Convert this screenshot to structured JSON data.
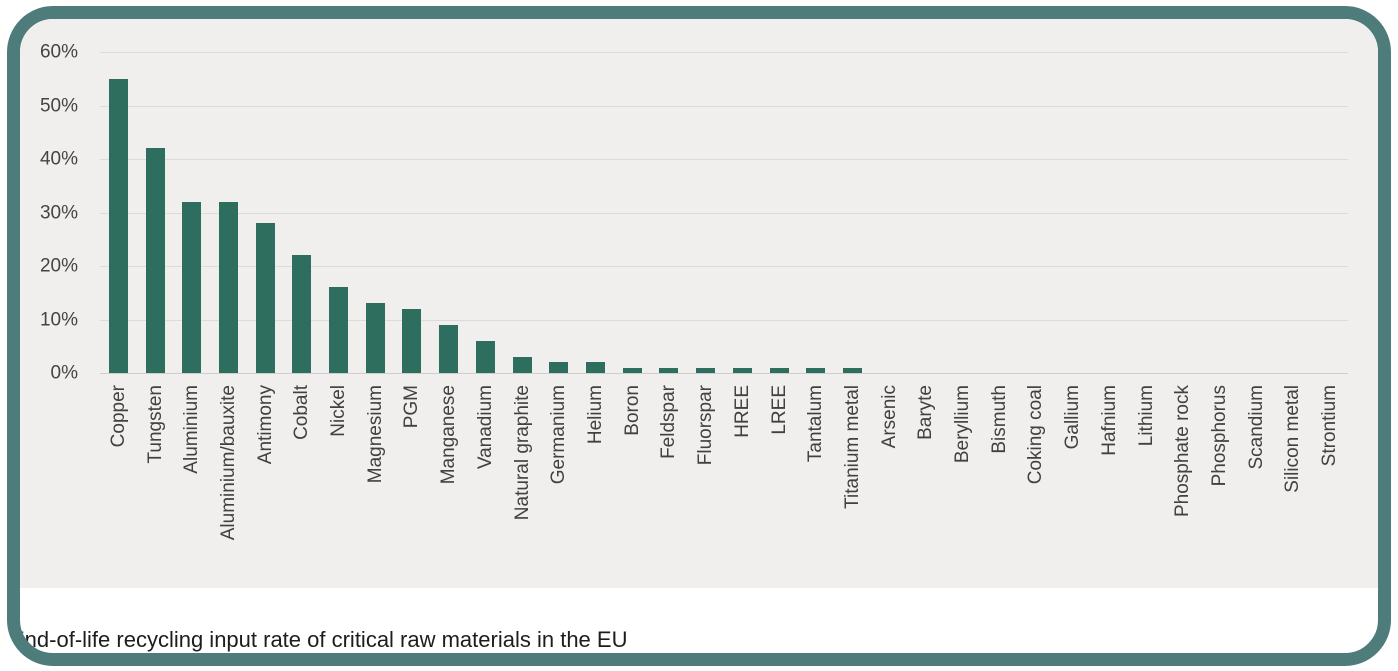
{
  "frame": {
    "border_color": "#4d7c7a",
    "background": "#ffffff"
  },
  "caption": "End-of-life recycling input rate of critical raw materials in the EU",
  "chart_data": {
    "type": "bar",
    "title": "",
    "xlabel": "",
    "ylabel": "",
    "ylim": [
      0,
      60
    ],
    "yticks": [
      "0%",
      "10%",
      "20%",
      "30%",
      "40%",
      "50%",
      "60%"
    ],
    "grid": true,
    "legend": "none",
    "bar_color": "#2e6e5e",
    "plot_background": "#f0efee",
    "categories": [
      "Copper",
      "Tungsten",
      "Aluminium",
      "Aluminium/bauxite",
      "Antimony",
      "Cobalt",
      "Nickel",
      "Magnesium",
      "PGM",
      "Manganese",
      "Vanadium",
      "Natural graphite",
      "Germanium",
      "Helium",
      "Boron",
      "Feldspar",
      "Fluorspar",
      "HREE",
      "LREE",
      "Tantalum",
      "Titanium metal",
      "Arsenic",
      "Baryte",
      "Beryllium",
      "Bismuth",
      "Coking coal",
      "Gallium",
      "Hafnium",
      "Lithium",
      "Phosphate rock",
      "Phosphorus",
      "Scandium",
      "Silicon metal",
      "Strontium"
    ],
    "values": [
      55,
      42,
      32,
      32,
      28,
      22,
      16,
      13,
      12,
      9,
      6,
      3,
      2,
      2,
      1,
      1,
      1,
      1,
      1,
      1,
      1,
      0,
      0,
      0,
      0,
      0,
      0,
      0,
      0,
      0,
      0,
      0,
      0,
      0
    ]
  }
}
